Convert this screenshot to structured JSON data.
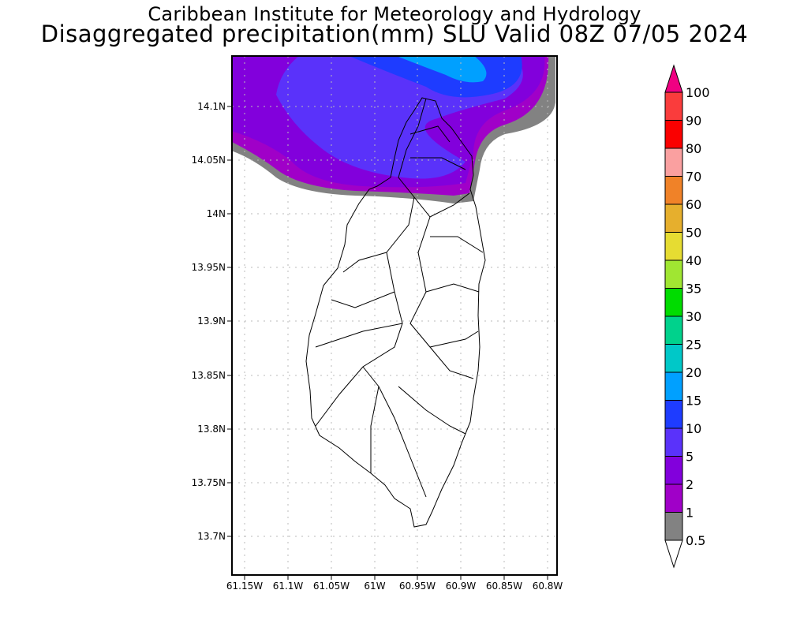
{
  "header": {
    "title_line1": "Caribbean Institute for Meteorology and Hydrology",
    "title_line2": "Disaggregated precipitation(mm) SLU Valid 08Z 07/05 2024"
  },
  "axes": {
    "lon_ticks": [
      "61.15W",
      "61.1W",
      "61.05W",
      "61W",
      "60.95W",
      "60.9W",
      "60.85W",
      "60.8W"
    ],
    "lat_ticks": [
      "14.1N",
      "14.05N",
      "14N",
      "13.95N",
      "13.9N",
      "13.85N",
      "13.8N",
      "13.75N",
      "13.7N"
    ]
  },
  "legend": {
    "labels": [
      "0.5",
      "1",
      "2",
      "5",
      "10",
      "15",
      "20",
      "25",
      "30",
      "35",
      "40",
      "50",
      "60",
      "70",
      "80",
      "90",
      "100"
    ],
    "colors": [
      "#828282",
      "#a000c8",
      "#8200dc",
      "#5a32fa",
      "#1e3cff",
      "#00a0ff",
      "#00c8c8",
      "#00d28c",
      "#00dc00",
      "#a0e632",
      "#e6dc32",
      "#e6af2d",
      "#f08228",
      "#faa0a0",
      "#fa0000",
      "#fa3c3c"
    ],
    "over_color": "#f00082",
    "under_color": "#ffffff"
  }
}
